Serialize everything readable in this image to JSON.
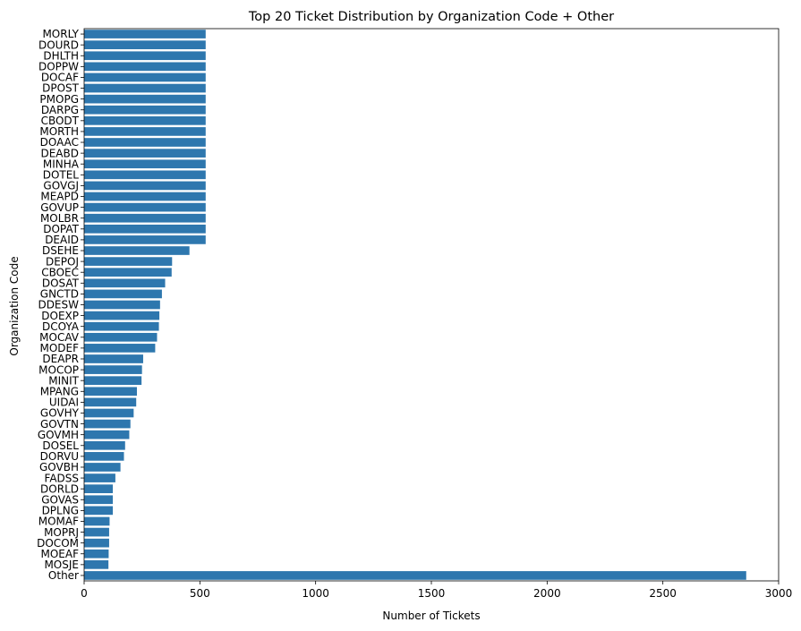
{
  "chart_data": {
    "type": "bar",
    "orientation": "horizontal",
    "title": "Top 20 Ticket Distribution by Organization Code + Other",
    "xlabel": "Number of Tickets",
    "ylabel": "Organization Code",
    "xlim": [
      0,
      3000
    ],
    "xticks": [
      0,
      500,
      1000,
      1500,
      2000,
      2500,
      3000
    ],
    "grid": false,
    "bar_color": "#2e77ae",
    "categories": [
      "MORLY",
      "DOURD",
      "DHLTH",
      "DOPPW",
      "DOCAF",
      "DPOST",
      "PMOPG",
      "DARPG",
      "CBODT",
      "MORTH",
      "DOAAC",
      "DEABD",
      "MINHA",
      "DOTEL",
      "GOVGJ",
      "MEAPD",
      "GOVUP",
      "MOLBR",
      "DOPAT",
      "DEAID",
      "DSEHE",
      "DEPOJ",
      "CBOEC",
      "DOSAT",
      "GNCTD",
      "DDESW",
      "DOEXP",
      "DCOYA",
      "MOCAV",
      "MODEF",
      "DEAPR",
      "MOCOP",
      "MINIT",
      "MPANG",
      "UIDAI",
      "GOVHY",
      "GOVTN",
      "GOVMH",
      "DOSEL",
      "DORVU",
      "GOVBH",
      "FADSS",
      "DORLD",
      "GOVAS",
      "DPLNG",
      "MOMAF",
      "MOPRJ",
      "DOCOM",
      "MOEAF",
      "MOSJE",
      "Other"
    ],
    "values": [
      525,
      525,
      525,
      525,
      525,
      525,
      525,
      525,
      525,
      525,
      525,
      525,
      525,
      525,
      525,
      525,
      525,
      525,
      525,
      525,
      455,
      380,
      378,
      350,
      336,
      328,
      325,
      323,
      315,
      307,
      255,
      250,
      248,
      228,
      225,
      214,
      200,
      195,
      177,
      172,
      157,
      135,
      124,
      124,
      124,
      110,
      108,
      108,
      106,
      105,
      2860
    ]
  }
}
